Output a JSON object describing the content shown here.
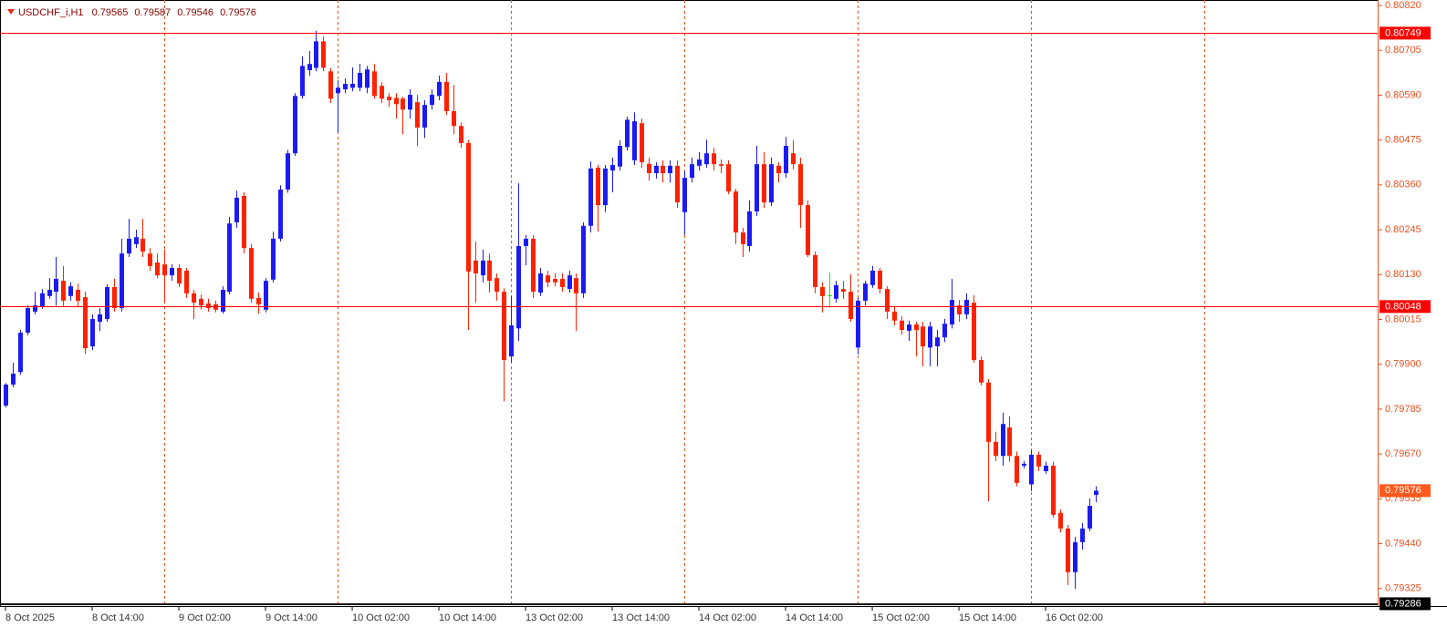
{
  "chart_data": {
    "type": "candlestick",
    "symbol": "USDCHF_i,H1",
    "bull_color": "#1b1bf5",
    "bear_color": "#ff2200",
    "doji_color": "#22dd22",
    "axis_color": "#e8501e",
    "current_price_color": "#ff5a1e",
    "ylim": [
      0.7928,
      0.80834
    ],
    "xlim": [
      -0.76,
      189.97
    ],
    "yticks": [
      {
        "value": 0.8082,
        "label": "0.80820"
      },
      0.80705,
      {
        "value": 0.8059,
        "label": "0.80590"
      },
      0.80475,
      {
        "value": 0.8036,
        "label": "0.80360"
      },
      0.80245,
      {
        "value": 0.8013,
        "label": "0.80130"
      },
      0.80015,
      {
        "value": 0.799,
        "label": "0.79900"
      },
      0.79785,
      {
        "value": 0.7967,
        "label": "0.79670"
      },
      0.79555,
      {
        "value": 0.7944,
        "label": "0.79440"
      },
      0.79325
    ],
    "xticks": [
      {
        "value": 0,
        "label": "8 Oct 2025"
      },
      {
        "value": 12,
        "label": "8 Oct 14:00"
      },
      {
        "value": 24,
        "label": "9 Oct 02:00"
      },
      {
        "value": 36,
        "label": "9 Oct 14:00"
      },
      {
        "value": 48,
        "label": "10 Oct 02:00"
      },
      {
        "value": 60,
        "label": "10 Oct 14:00"
      },
      {
        "value": 72,
        "label": "13 Oct 02:00"
      },
      {
        "value": 84,
        "label": "13 Oct 14:00"
      },
      {
        "value": 96,
        "label": "14 Oct 02:00"
      },
      {
        "value": 108,
        "label": "14 Oct 14:00"
      },
      {
        "value": 120,
        "label": "15 Oct 02:00"
      },
      {
        "value": 132,
        "label": "15 Oct 14:00"
      },
      {
        "value": 144,
        "label": "16 Oct 02:00"
      }
    ],
    "period_separators": [
      22,
      46,
      70,
      94,
      118,
      142,
      166
    ],
    "hlines": [
      {
        "value": 0.80749,
        "color": "#ff0000"
      },
      {
        "value": 0.80048,
        "color": "#ff0000"
      },
      {
        "value": 0.79286,
        "color": "#000000"
      }
    ],
    "open": [
      0.79794,
      0.79848,
      0.7988,
      0.79981,
      0.80035,
      0.80049,
      0.80075,
      0.80086,
      0.80114,
      0.80075,
      0.80091,
      0.80072,
      0.79946,
      0.80009,
      0.80016,
      0.80098,
      0.80044,
      0.80184,
      0.80208,
      0.80222,
      0.80184,
      0.80161,
      0.80156,
      0.80128,
      0.80147,
      0.8014,
      0.80082,
      0.80068,
      0.80056,
      0.80054,
      0.80035,
      0.80086,
      0.80264,
      0.80332,
      0.80198,
      0.8007,
      0.8004,
      0.80117,
      0.80222,
      0.80348,
      0.80441,
      0.80588,
      0.80654,
      0.8066,
      0.80728,
      0.80651,
      0.80595,
      0.80605,
      0.80609,
      0.80609,
      0.80609,
      0.80651,
      0.80614,
      0.80586,
      0.80583,
      0.80581,
      0.80553,
      0.80572,
      0.80507,
      0.80565,
      0.80588,
      0.80624,
      0.80549,
      0.80511,
      0.80467,
      0.80166,
      0.80128,
      0.80166,
      0.80121,
      0.80086,
      0.7992,
      0.79992,
      0.80203,
      0.80222,
      0.80084,
      0.80128,
      0.80119,
      0.80119,
      0.80093,
      0.80121,
      0.80082,
      0.80255,
      0.80404,
      0.80308,
      0.80397,
      0.80407,
      0.80457,
      0.80423,
      0.80518,
      0.80414,
      0.8039,
      0.80409,
      0.8039,
      0.80409,
      0.8029,
      0.80378,
      0.80409,
      0.80413,
      0.80441,
      0.80413,
      0.80413,
      0.80343,
      0.80238,
      0.80203,
      0.80292,
      0.80413,
      0.80315,
      0.80409,
      0.8039,
      0.80441,
      0.80413,
      0.80308,
      0.8018,
      0.80098,
      0.80077,
      0.80068,
      0.80093,
      0.80086,
      0.79943,
      0.80063,
      0.80103,
      0.8014,
      0.80093,
      0.80035,
      0.80012,
      0.79986,
      0.80002,
      0.79997,
      0.79943,
      0.79946,
      0.79969,
      0.80002,
      0.80051,
      0.80028,
      0.80058,
      0.79911,
      0.79853,
      0.79701,
      0.79665,
      0.79738,
      0.79665,
      0.7964,
      0.79592,
      0.79668,
      0.79626,
      0.7964,
      0.79519,
      0.79479,
      0.79367,
      0.79444,
      0.79479,
      0.79565
    ],
    "high": [
      0.79852,
      0.79904,
      0.79988,
      0.80051,
      0.80086,
      0.80093,
      0.80121,
      0.80175,
      0.80152,
      0.8011,
      0.80107,
      0.80086,
      0.80028,
      0.80044,
      0.80105,
      0.80119,
      0.80222,
      0.80273,
      0.80245,
      0.80273,
      0.80198,
      0.80184,
      0.80194,
      0.80156,
      0.80156,
      0.80147,
      0.80091,
      0.80079,
      0.80068,
      0.80063,
      0.801,
      0.80278,
      0.80345,
      0.80341,
      0.80208,
      0.80084,
      0.80121,
      0.8024,
      0.80359,
      0.8045,
      0.80595,
      0.80689,
      0.80703,
      0.80755,
      0.8074,
      0.8066,
      0.80628,
      0.80633,
      0.80661,
      0.8067,
      0.80665,
      0.8067,
      0.80623,
      0.80595,
      0.80595,
      0.80586,
      0.80605,
      0.80591,
      0.80577,
      0.80605,
      0.8064,
      0.80647,
      0.80616,
      0.8052,
      0.80475,
      0.80215,
      0.80194,
      0.80184,
      0.80133,
      0.80095,
      0.80075,
      0.80364,
      0.80231,
      0.80231,
      0.80147,
      0.8014,
      0.80133,
      0.80133,
      0.8014,
      0.80133,
      0.80264,
      0.8042,
      0.80411,
      0.80411,
      0.8043,
      0.80474,
      0.80535,
      0.80546,
      0.8053,
      0.8043,
      0.80418,
      0.80423,
      0.80423,
      0.80423,
      0.80395,
      0.8043,
      0.80444,
      0.80476,
      0.80455,
      0.80425,
      0.80423,
      0.8035,
      0.8025,
      0.8032,
      0.8046,
      0.80444,
      0.8043,
      0.80418,
      0.80483,
      0.80474,
      0.8043,
      0.8032,
      0.80189,
      0.8011,
      0.80135,
      0.80114,
      0.80114,
      0.80131,
      0.80072,
      0.80114,
      0.80152,
      0.80147,
      0.801,
      0.80049,
      0.80023,
      0.80012,
      0.80009,
      0.80009,
      0.80009,
      0.79988,
      0.80016,
      0.80119,
      0.80065,
      0.80082,
      0.80077,
      0.7992,
      0.79862,
      0.79727,
      0.79776,
      0.79766,
      0.79676,
      0.79652,
      0.7968,
      0.79676,
      0.7965,
      0.7965,
      0.79528,
      0.79488,
      0.79458,
      0.79493,
      0.79556,
      0.79587
    ],
    "low": [
      0.79789,
      0.79841,
      0.79873,
      0.79974,
      0.80028,
      0.80042,
      0.80068,
      0.80051,
      0.80049,
      0.80063,
      0.80049,
      0.79927,
      0.79936,
      0.79985,
      0.80009,
      0.80035,
      0.80035,
      0.80175,
      0.80198,
      0.80175,
      0.8014,
      0.80121,
      0.80058,
      0.80114,
      0.80098,
      0.8007,
      0.80016,
      0.8004,
      0.80035,
      0.80033,
      0.8003,
      0.80079,
      0.8025,
      0.80184,
      0.80058,
      0.8003,
      0.80033,
      0.8011,
      0.80215,
      0.8034,
      0.80434,
      0.80581,
      0.8064,
      0.80651,
      0.80651,
      0.8057,
      0.80495,
      0.80595,
      0.806,
      0.806,
      0.80595,
      0.80581,
      0.8057,
      0.8056,
      0.8053,
      0.8049,
      0.8053,
      0.80459,
      0.8048,
      0.80553,
      0.80577,
      0.80539,
      0.8049,
      0.80455,
      0.79988,
      0.80058,
      0.8011,
      0.80084,
      0.80063,
      0.79805,
      0.79905,
      0.7996,
      0.80154,
      0.8007,
      0.80075,
      0.80098,
      0.801,
      0.80086,
      0.80084,
      0.79985,
      0.8007,
      0.80238,
      0.8024,
      0.8029,
      0.80341,
      0.80397,
      0.80448,
      0.80411,
      0.80404,
      0.80371,
      0.80376,
      0.80366,
      0.80366,
      0.80301,
      0.80232,
      0.80366,
      0.80397,
      0.80404,
      0.80397,
      0.8039,
      0.80336,
      0.80208,
      0.80175,
      0.80189,
      0.8028,
      0.80301,
      0.80306,
      0.80366,
      0.80378,
      0.804,
      0.8025,
      0.80175,
      0.80082,
      0.80033,
      0.80045,
      0.80058,
      0.80068,
      0.80009,
      0.79925,
      0.80051,
      0.80096,
      0.80082,
      0.80016,
      0.8,
      0.79976,
      0.7996,
      0.7992,
      0.79895,
      0.79895,
      0.79895,
      0.79957,
      0.79992,
      0.80009,
      0.80016,
      0.79904,
      0.79846,
      0.79549,
      0.79652,
      0.7964,
      0.7965,
      0.79587,
      0.79633,
      0.79575,
      0.79626,
      0.79619,
      0.79507,
      0.79469,
      0.79334,
      0.79324,
      0.79425,
      0.79472,
      0.79546
    ],
    "close": [
      0.79848,
      0.79876,
      0.79981,
      0.80044,
      0.80051,
      0.80082,
      0.80091,
      0.80119,
      0.80063,
      0.801,
      0.80063,
      0.79941,
      0.80016,
      0.80028,
      0.80098,
      0.80044,
      0.80184,
      0.80222,
      0.80226,
      0.80189,
      0.80152,
      0.80128,
      0.80128,
      0.80147,
      0.80107,
      0.80082,
      0.80058,
      0.80051,
      0.80044,
      0.8004,
      0.80091,
      0.80261,
      0.80327,
      0.80198,
      0.80068,
      0.80054,
      0.80114,
      0.80222,
      0.80348,
      0.80441,
      0.80588,
      0.80665,
      0.8067,
      0.80728,
      0.8066,
      0.80581,
      0.80609,
      0.80619,
      0.80619,
      0.80647,
      0.80656,
      0.80588,
      0.80581,
      0.80577,
      0.80567,
      0.80553,
      0.80591,
      0.80507,
      0.80565,
      0.80591,
      0.80624,
      0.80549,
      0.80511,
      0.80467,
      0.80138,
      0.80133,
      0.80166,
      0.80114,
      0.80086,
      0.79911,
      0.8,
      0.80203,
      0.80222,
      0.80086,
      0.80133,
      0.8011,
      0.8011,
      0.80098,
      0.80128,
      0.80082,
      0.80255,
      0.80402,
      0.80308,
      0.80402,
      0.80411,
      0.8046,
      0.80527,
      0.80523,
      0.80418,
      0.8039,
      0.80409,
      0.8039,
      0.80409,
      0.80315,
      0.80378,
      0.80413,
      0.80425,
      0.80441,
      0.80413,
      0.80409,
      0.80343,
      0.80238,
      0.80208,
      0.80292,
      0.80413,
      0.80315,
      0.80413,
      0.8039,
      0.8046,
      0.80413,
      0.80308,
      0.8018,
      0.80098,
      0.80075,
      0.80077,
      0.80103,
      0.80086,
      0.80016,
      0.80063,
      0.80107,
      0.8014,
      0.80093,
      0.80035,
      0.80012,
      0.79988,
      0.80002,
      0.79988,
      0.79946,
      0.79997,
      0.79969,
      0.80004,
      0.80065,
      0.80028,
      0.80065,
      0.79911,
      0.79853,
      0.79701,
      0.79665,
      0.79747,
      0.79665,
      0.79596,
      0.79645,
      0.79668,
      0.79638,
      0.7964,
      0.79514,
      0.79479,
      0.79367,
      0.79444,
      0.79479,
      0.79537,
      0.79576
    ]
  }
}
